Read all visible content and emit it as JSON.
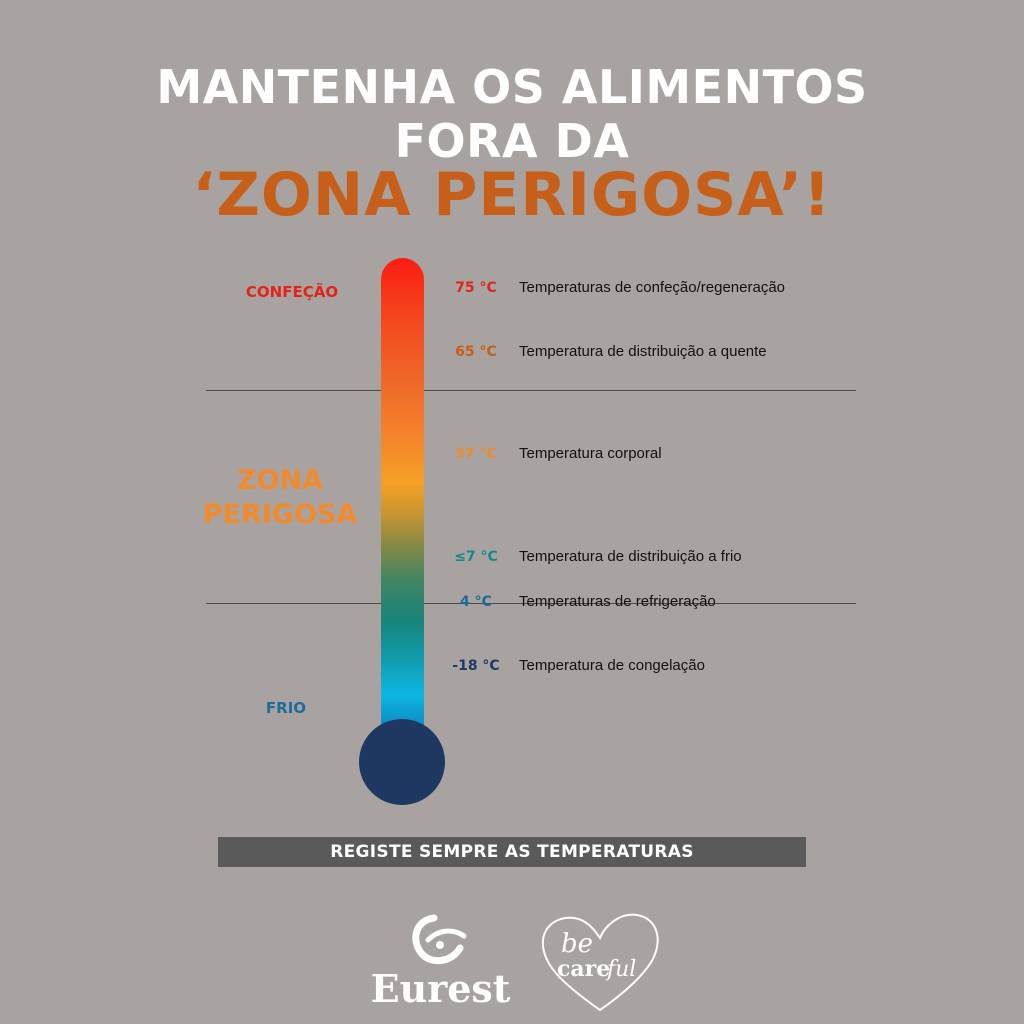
{
  "title": {
    "line1": "MANTENHA OS ALIMENTOS",
    "line2": "FORA DA",
    "line3": "‘ZONA PERIGOSA’!"
  },
  "zones": {
    "confecao": "CONFEÇÃO",
    "zona_line1": "ZONA",
    "zona_line2": "PERIGOSA",
    "frio": "FRIO"
  },
  "temperatures": [
    {
      "value": "75 °C",
      "label": "Temperaturas de confeção/regeneração",
      "color": "#e2231a"
    },
    {
      "value": "65 °C",
      "label": "Temperatura de distribuição a quente",
      "color": "#c95d18"
    },
    {
      "value": "37 °C",
      "label": "Temperatura corporal",
      "color": "#f08a2c"
    },
    {
      "value": "≤7 °C",
      "label": "Temperatura de distribuição a frio",
      "color": "#148a8c"
    },
    {
      "value": "4 °C",
      "label": "Temperaturas de refrigeração",
      "color": "#1b6b98"
    },
    {
      "value": "-18 °C",
      "label": "Temperatura de congelação",
      "color": "#1e3a66"
    }
  ],
  "banner": "REGISTE SEMPRE AS TEMPERATURAS",
  "logos": {
    "eurest": "Eurest",
    "becareful_be": "be",
    "becareful_care": "care",
    "becareful_ful": "ful"
  },
  "colors": {
    "background": "#a8a3a0",
    "accent_orange": "#c65f19",
    "bulb": "#1e3861"
  }
}
